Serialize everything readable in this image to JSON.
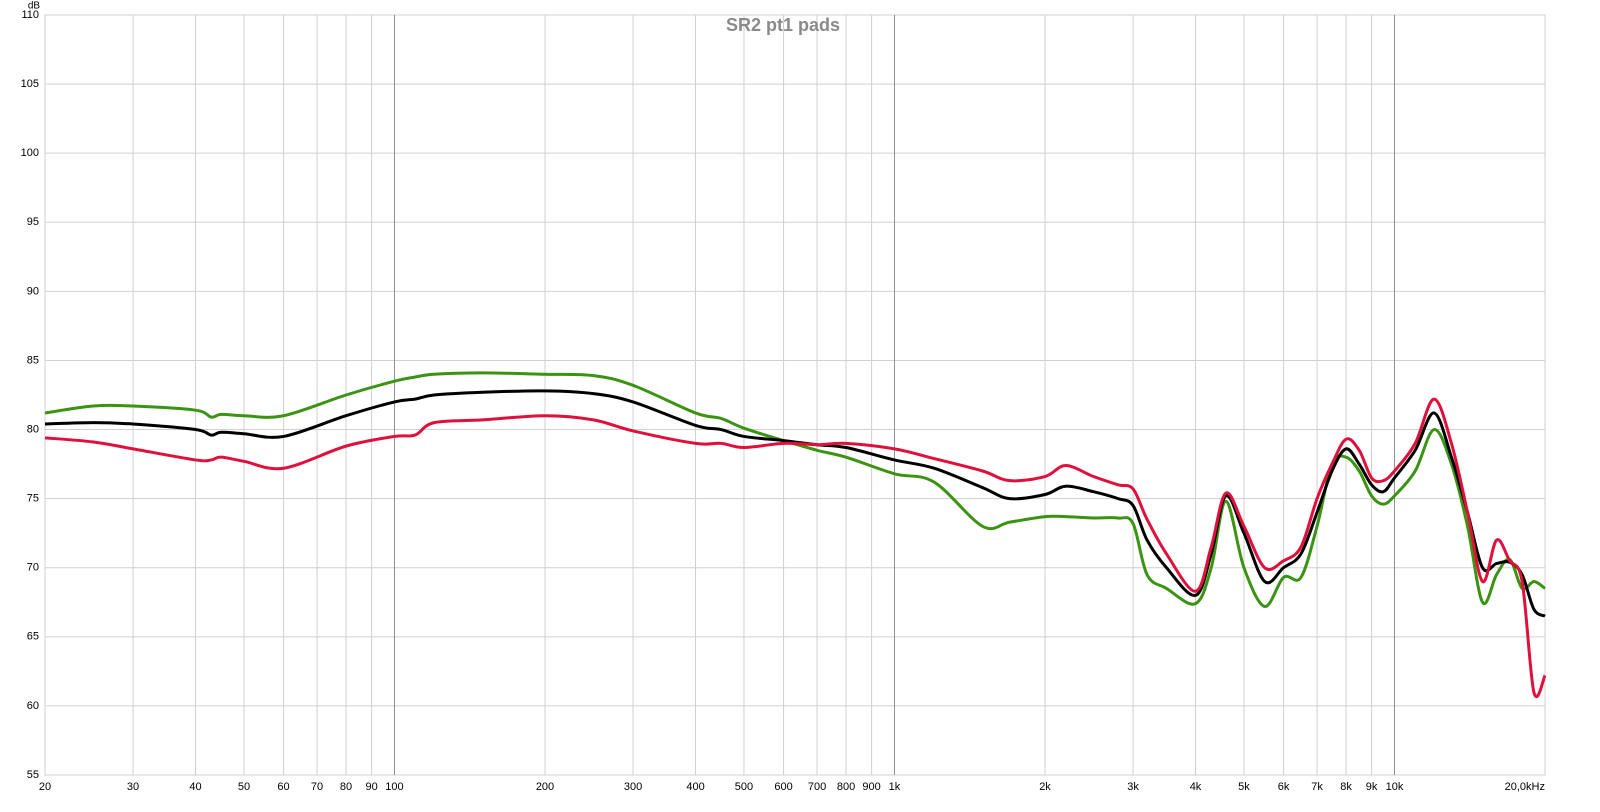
{
  "chart_data": {
    "type": "line",
    "title": "SR2 pt1 pads",
    "y_label": "dB",
    "xscale": "log",
    "grid": true,
    "x": [
      20,
      25,
      30,
      40,
      43,
      45,
      50,
      60,
      80,
      100,
      110,
      120,
      150,
      200,
      250,
      300,
      400,
      450,
      500,
      600,
      700,
      800,
      1000,
      1200,
      1500,
      1700,
      2000,
      2200,
      2500,
      2800,
      3000,
      3200,
      3500,
      4000,
      4300,
      4600,
      5000,
      5500,
      6000,
      6500,
      7000,
      7500,
      8000,
      8500,
      9000,
      9500,
      10000,
      11000,
      12000,
      13000,
      14000,
      15000,
      16000,
      17000,
      18000,
      19000,
      20000
    ],
    "series": [
      {
        "color": "#3a9412",
        "values": [
          81.2,
          81.7,
          81.7,
          81.4,
          80.9,
          81.1,
          81.0,
          81.0,
          82.5,
          83.5,
          83.8,
          84.0,
          84.1,
          84.0,
          83.9,
          83.2,
          81.2,
          80.8,
          80.1,
          79.2,
          78.5,
          78.0,
          76.8,
          76.2,
          73.0,
          73.3,
          73.7,
          73.7,
          73.6,
          73.6,
          73.2,
          69.5,
          68.5,
          67.4,
          70,
          74.8,
          70,
          67.2,
          69.3,
          69.3,
          73,
          77.5,
          78.0,
          77,
          75.2,
          74.6,
          75.2,
          77,
          80,
          77.5,
          73,
          67.5,
          69.5,
          70.6,
          68.5,
          69,
          68.5
        ]
      },
      {
        "color": "#000000",
        "values": [
          80.4,
          80.5,
          80.4,
          80.0,
          79.6,
          79.8,
          79.7,
          79.5,
          81.0,
          82.0,
          82.2,
          82.5,
          82.7,
          82.8,
          82.6,
          82.0,
          80.3,
          80.0,
          79.5,
          79.2,
          78.9,
          78.7,
          77.8,
          77.2,
          75.8,
          75.0,
          75.3,
          75.9,
          75.5,
          75.0,
          74.5,
          72.0,
          70.0,
          68.0,
          71,
          75.2,
          72.5,
          69.0,
          70.0,
          71,
          74,
          77,
          78.6,
          77.5,
          76,
          75.5,
          76.5,
          78.5,
          81.2,
          78,
          74,
          70,
          70.3,
          70.4,
          69.5,
          67,
          66.5
        ]
      },
      {
        "color": "#e0103c",
        "values": [
          79.4,
          79.1,
          78.6,
          77.8,
          77.8,
          78.0,
          77.7,
          77.2,
          78.8,
          79.5,
          79.6,
          80.5,
          80.7,
          81.0,
          80.7,
          79.9,
          79.0,
          79.0,
          78.7,
          79.0,
          78.9,
          79.0,
          78.6,
          77.9,
          77.0,
          76.3,
          76.6,
          77.4,
          76.6,
          76.0,
          75.7,
          73.5,
          71.0,
          68.3,
          71.5,
          75.4,
          73,
          70,
          70.5,
          71.5,
          75,
          77.5,
          79.3,
          78.5,
          76.5,
          76.3,
          77,
          79,
          82.2,
          79,
          74,
          69,
          72,
          70.5,
          69,
          61,
          62.2
        ]
      }
    ],
    "xlim": [
      20,
      20000
    ],
    "xticks": [
      20,
      30,
      40,
      50,
      60,
      70,
      80,
      90,
      100,
      200,
      300,
      400,
      500,
      600,
      700,
      800,
      900,
      {
        "value": 1000,
        "label": "1k"
      },
      {
        "value": 2000,
        "label": "2k"
      },
      {
        "value": 3000,
        "label": "3k"
      },
      {
        "value": 4000,
        "label": "4k"
      },
      {
        "value": 5000,
        "label": "5k"
      },
      {
        "value": 6000,
        "label": "6k"
      },
      {
        "value": 7000,
        "label": "7k"
      },
      {
        "value": 8000,
        "label": "8k"
      },
      {
        "value": 9000,
        "label": "9k"
      },
      {
        "value": 10000,
        "label": "10k"
      },
      {
        "value": 20000,
        "label": "20,0kHz"
      }
    ],
    "ylim": [
      55,
      110
    ],
    "yticks": [
      55,
      60,
      65,
      70,
      75,
      80,
      85,
      90,
      95,
      100,
      105,
      110
    ]
  }
}
